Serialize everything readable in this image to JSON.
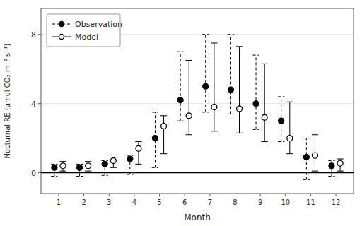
{
  "chart_data": {
    "type": "errorbar",
    "xlabel": "Month",
    "ylabel": "Nocturnal RE (μmol CO₂ m⁻² s⁻¹)",
    "x": [
      1,
      2,
      3,
      4,
      5,
      6,
      7,
      8,
      9,
      10,
      11,
      12
    ],
    "xlim": [
      0.3,
      12.7
    ],
    "xticks": [
      1,
      2,
      3,
      4,
      5,
      6,
      7,
      8,
      9,
      10,
      11,
      12
    ],
    "ylim": [
      -1.2,
      9.5
    ],
    "yticks": [
      0,
      4,
      8
    ],
    "hline_y": 0.0,
    "legend": "upper left",
    "series": [
      {
        "name": "Observation",
        "color": "#000000",
        "marker": "filled",
        "line_style": "dashed",
        "values": [
          0.3,
          0.3,
          0.5,
          0.8,
          2.0,
          4.2,
          5.0,
          4.8,
          4.0,
          3.0,
          0.9,
          0.4
        ],
        "upper": [
          0.5,
          0.5,
          0.7,
          1.0,
          3.5,
          7.0,
          8.0,
          8.0,
          6.8,
          4.4,
          2.0,
          0.7
        ],
        "lower": [
          -0.2,
          -0.2,
          -0.15,
          -0.1,
          0.3,
          3.0,
          3.5,
          3.4,
          2.5,
          1.8,
          -0.4,
          -0.2
        ]
      },
      {
        "name": "Model",
        "color": "#000000",
        "marker": "open",
        "line_style": "solid",
        "values": [
          0.4,
          0.4,
          0.7,
          1.4,
          2.7,
          3.3,
          3.8,
          3.7,
          3.2,
          2.0,
          1.0,
          0.55
        ],
        "upper": [
          0.65,
          0.65,
          0.9,
          1.8,
          3.3,
          6.5,
          7.5,
          7.3,
          6.3,
          4.1,
          2.2,
          0.8
        ],
        "lower": [
          0.1,
          0.1,
          0.3,
          0.5,
          1.1,
          2.2,
          2.4,
          2.3,
          1.8,
          1.1,
          0.1,
          0.1
        ]
      }
    ]
  }
}
